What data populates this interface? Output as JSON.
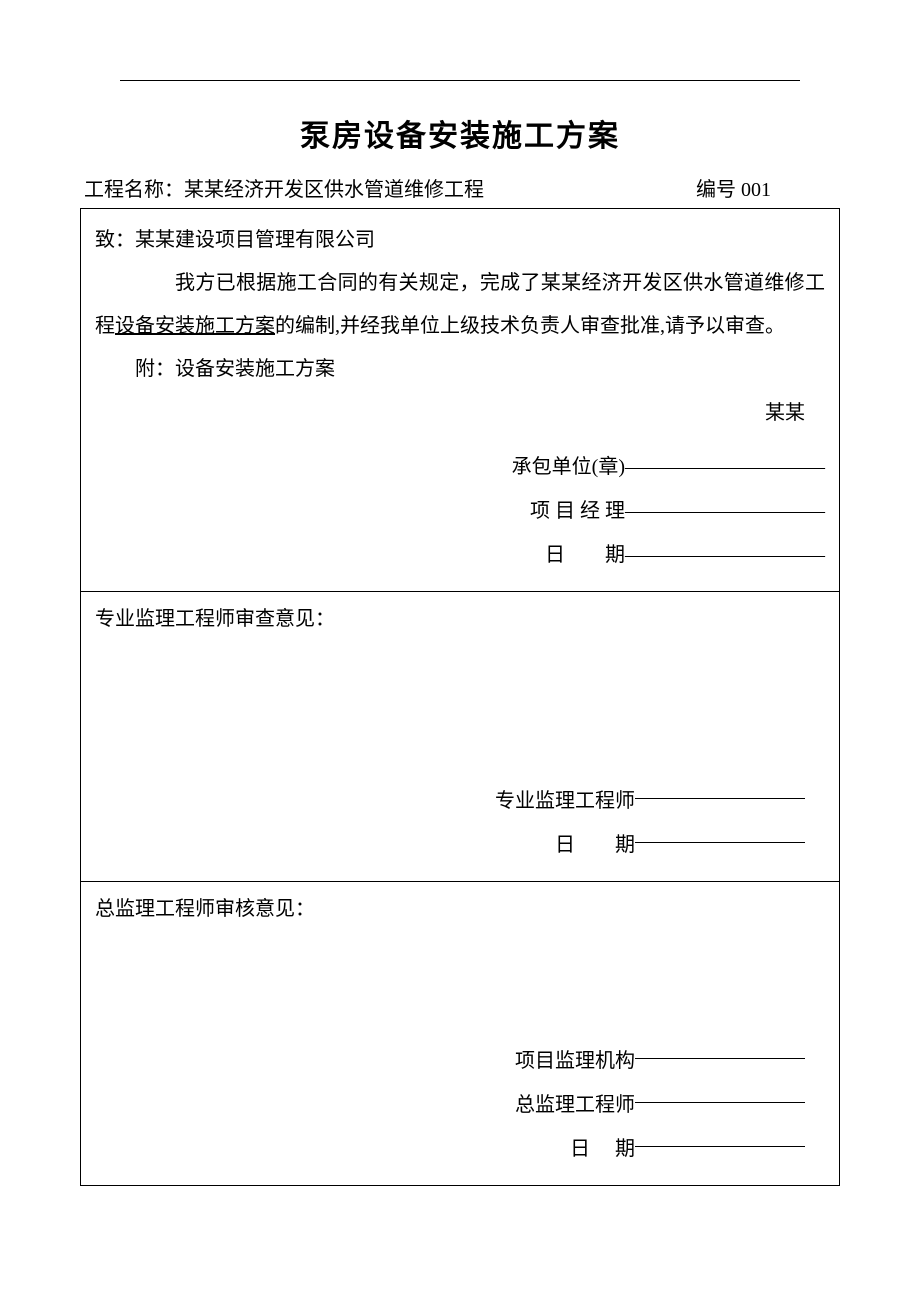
{
  "doc": {
    "title": "泵房设备安装施工方案",
    "top_rule_color": "#000000",
    "background_color": "#ffffff",
    "text_color": "#000000",
    "title_fontsize": 30,
    "body_fontsize": 20,
    "header": {
      "project_label": "工程名称：",
      "project_name": "某某经济开发区供水管道维修工程",
      "serial_label": "编号 ",
      "serial_no": "001"
    },
    "cell1": {
      "to_label": "致：",
      "to_name": "某某建设项目管理有限公司",
      "body_pre": "我方已根据施工合同的有关规定，完成了某某经济开发区供水管道维修工程",
      "body_underline": "设备安装施工方案",
      "body_post": "的编制,并经我单位上级技术负责人审查批准,请予以审查。",
      "attachment": "附：设备安装施工方案",
      "right_note": "某某",
      "sig1_label": "承包单位(章)",
      "sig1_dash": "——————————",
      "sig2_label": "项 目 经 理",
      "sig2_dash": "——————————",
      "sig3_label": "日        期",
      "sig3_dash": "——————————"
    },
    "cell2": {
      "heading": "专业监理工程师审查意见：",
      "sig1_label": "专业监理工程师",
      "sig2_label": "日        期"
    },
    "cell3": {
      "heading": "总监理工程师审核意见：",
      "sig1_label": "项目监理机构",
      "sig2_label": "总监理工程师",
      "sig3_label": "日     期"
    }
  }
}
